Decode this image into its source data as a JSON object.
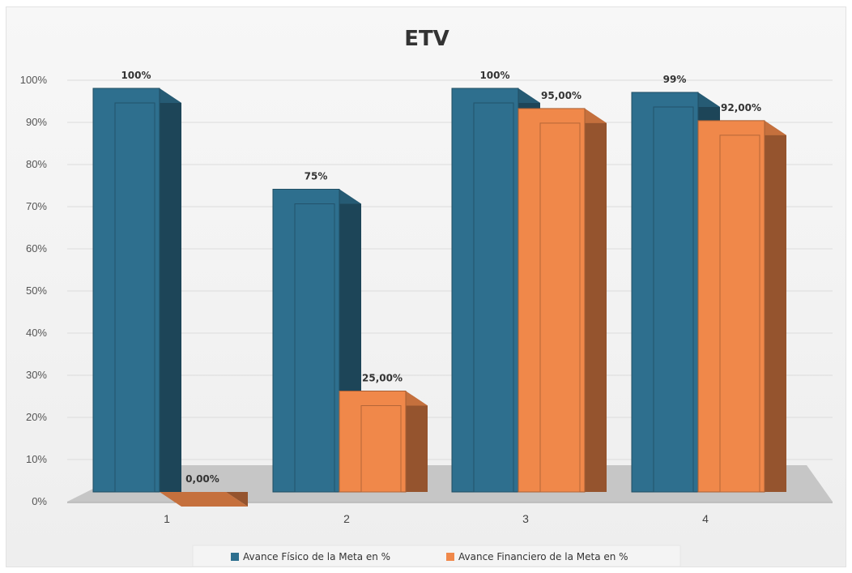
{
  "chart_data": {
    "type": "bar",
    "title": "ETV",
    "categories": [
      "1",
      "2",
      "3",
      "4"
    ],
    "yticks": [
      "0%",
      "10%",
      "20%",
      "30%",
      "40%",
      "50%",
      "60%",
      "70%",
      "80%",
      "90%",
      "100%"
    ],
    "ylim": [
      0,
      100
    ],
    "three_d": true,
    "grid": true,
    "legend_position": "bottom",
    "series": [
      {
        "name": "Avance Físico de la Meta en %",
        "color": "#2e6f8e",
        "values": [
          100,
          75,
          100,
          99
        ],
        "labels": [
          "100%",
          "75%",
          "100%",
          "99%"
        ]
      },
      {
        "name": "Avance Financiero de la Meta en %",
        "color": "#f0884a",
        "values": [
          0,
          25,
          95,
          92
        ],
        "labels": [
          "0,00%",
          "25,00%",
          "95,00%",
          "92,00%"
        ]
      }
    ]
  }
}
